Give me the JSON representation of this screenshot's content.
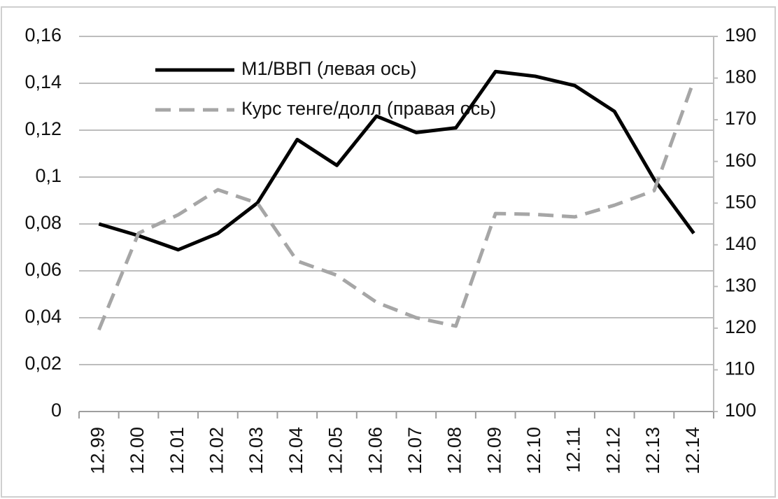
{
  "chart_data": {
    "type": "line",
    "categories": [
      "12.99",
      "12.00",
      "12.01",
      "12.02",
      "12.03",
      "12.04",
      "12.05",
      "12.06",
      "12.07",
      "12.08",
      "12.09",
      "12.10",
      "12.11",
      "12.12",
      "12.13",
      "12.14"
    ],
    "series": [
      {
        "name": "М1/ВВП (левая ось)",
        "color": "#000000",
        "axis": "y",
        "values": [
          0.08,
          0.075,
          0.069,
          0.076,
          0.089,
          0.116,
          0.105,
          0.126,
          0.119,
          0.121,
          0.145,
          0.143,
          0.139,
          0.128,
          0.099,
          0.076
        ]
      },
      {
        "name": "Курс тенге/долл (правая ось)",
        "color": "#a6a6a6",
        "axis": "y2",
        "values": [
          119.6,
          142.8,
          147.2,
          153.2,
          150.0,
          136.1,
          132.7,
          126.2,
          122.5,
          120.5,
          147.5,
          147.3,
          146.7,
          149.5,
          153.0,
          179.4
        ]
      }
    ],
    "ylim": [
      0,
      0.16
    ],
    "yticks": [
      0,
      {
        "value": 0.02,
        "label": "0,02"
      },
      {
        "value": 0.04,
        "label": "0,04"
      },
      {
        "value": 0.06,
        "label": "0,06"
      },
      {
        "value": 0.08,
        "label": "0,08"
      },
      {
        "value": 0.1,
        "label": "0,1"
      },
      {
        "value": 0.12,
        "label": "0,12"
      },
      {
        "value": 0.14,
        "label": "0,14"
      },
      {
        "value": 0.16,
        "label": "0,16"
      }
    ],
    "y2lim": [
      100,
      190
    ],
    "y2ticks": [
      100,
      110,
      120,
      130,
      140,
      150,
      160,
      170,
      180,
      190
    ],
    "grid": true,
    "legend": "top-left"
  }
}
